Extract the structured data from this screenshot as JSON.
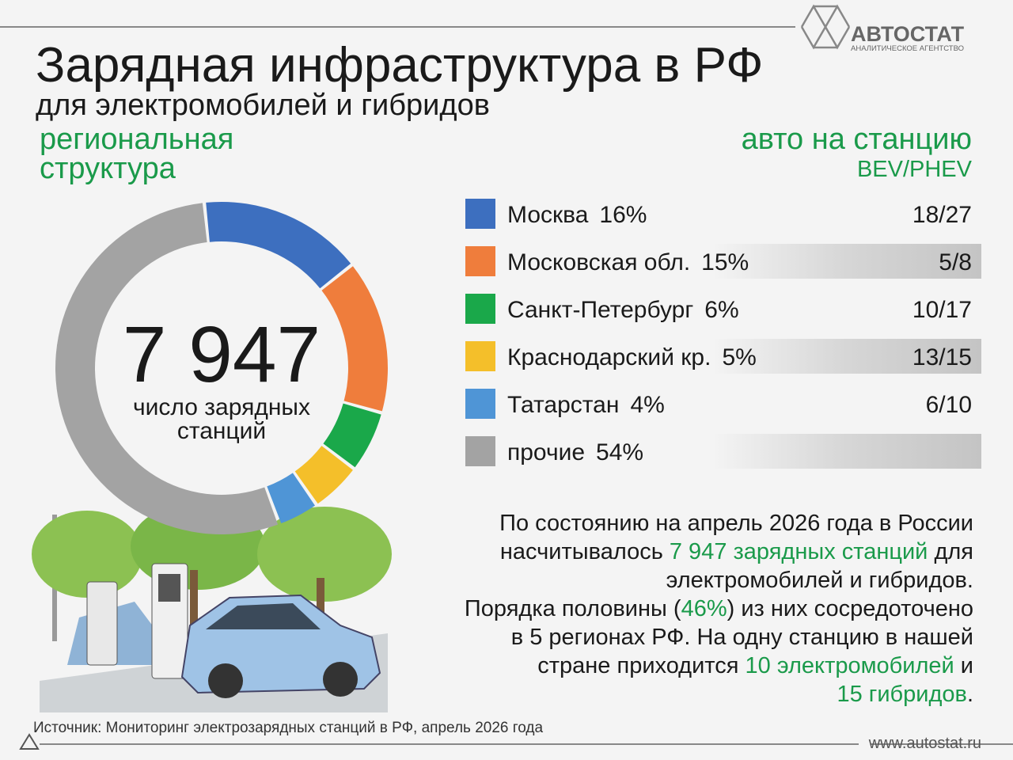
{
  "chart_data": {
    "type": "pie",
    "title": "Зарядная инфраструктура в РФ",
    "subtitle": "для электромобилей и гибридов",
    "section_heading": [
      "региональная",
      "структура"
    ],
    "ratio_heading": "авто на станцию",
    "ratio_unit": "BEV/PHEV",
    "center_label": "7 947",
    "center_caption": [
      "число зарядных",
      "станций"
    ],
    "categories": [
      "Москва",
      "Московская обл.",
      "Санкт-Петербург",
      "Краснодарский кр.",
      "Татарстан",
      "прочие"
    ],
    "values": [
      16,
      15,
      6,
      5,
      4,
      54
    ],
    "value_labels": [
      "16%",
      "15%",
      "6%",
      "5%",
      "4%",
      "54%"
    ],
    "colors": [
      "#3d6fbf",
      "#ef7d3c",
      "#1aa84a",
      "#f4bf2a",
      "#4f95d6",
      "#a3a3a3"
    ],
    "ratios": [
      "18/27",
      "5/8",
      "10/17",
      "13/15",
      "6/10",
      null
    ]
  },
  "summary": [
    [
      {
        "text": "По состоянию на апрель 2026 года в России",
        "accent": false
      }
    ],
    [
      {
        "text": "насчитывалось ",
        "accent": false
      },
      {
        "text": "7 947 зарядных станций",
        "accent": true
      },
      {
        "text": " для",
        "accent": false
      }
    ],
    [
      {
        "text": "электромобилей и гибридов.",
        "accent": false
      }
    ],
    [
      {
        "text": "Порядка половины (",
        "accent": false
      },
      {
        "text": "46%",
        "accent": true
      },
      {
        "text": ") из них сосредоточено",
        "accent": false
      }
    ],
    [
      {
        "text": "в 5 регионах РФ. На одну станцию в нашей",
        "accent": false
      }
    ],
    [
      {
        "text": "стране приходится ",
        "accent": false
      },
      {
        "text": "10 электромобилей",
        "accent": true
      },
      {
        "text": " и",
        "accent": false
      }
    ],
    [
      {
        "text": "15 гибридов",
        "accent": true
      },
      {
        "text": ".",
        "accent": false
      }
    ]
  ],
  "source": "Источник: Мониторинг электрозарядных станций в РФ, апрель 2026 года",
  "website": "www.autostat.ru",
  "logo": {
    "name": "АВТОСТАТ",
    "tagline": "АНАЛИТИЧЕСКОЕ АГЕНТСТВО"
  }
}
